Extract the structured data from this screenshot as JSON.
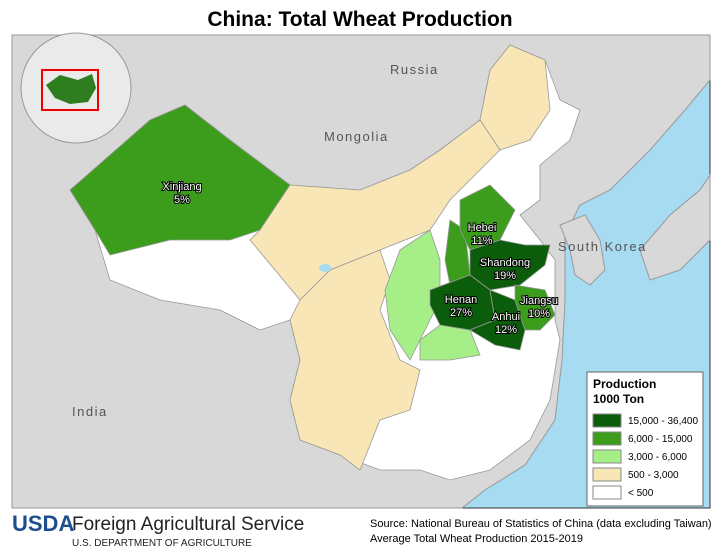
{
  "header": {
    "title": "China: Total Wheat Production"
  },
  "map": {
    "countries": [
      "Russia",
      "Mongolia",
      "South Korea",
      "India"
    ],
    "provinces": [
      {
        "name": "Xinjiang",
        "share": "5%"
      },
      {
        "name": "Hebei",
        "share": "11%"
      },
      {
        "name": "Shandong",
        "share": "19%"
      },
      {
        "name": "Henan",
        "share": "27%"
      },
      {
        "name": "Anhui",
        "share": "12%"
      },
      {
        "name": "Jiangsu",
        "share": "10%"
      }
    ]
  },
  "legend": {
    "title": "Production",
    "unit": "1000 Ton",
    "items": [
      {
        "label": "15,000  - 36,400",
        "color": "#0b5d0b"
      },
      {
        "label": "6,000 - 15,000",
        "color": "#3c9c1c"
      },
      {
        "label": "3,000 - 6,000",
        "color": "#a6ee88"
      },
      {
        "label": "500 - 3,000",
        "color": "#f8e6b6"
      },
      {
        "label": "< 500",
        "color": "#ffffff"
      }
    ]
  },
  "footer": {
    "logo": "USDA",
    "agency": "Foreign Agricultural Service",
    "department": "U.S. DEPARTMENT OF AGRICULTURE",
    "source": [
      "Source: National Bureau of Statistics of China (data excluding Taiwan)",
      "Average Total Wheat Production 2015-2019"
    ]
  }
}
